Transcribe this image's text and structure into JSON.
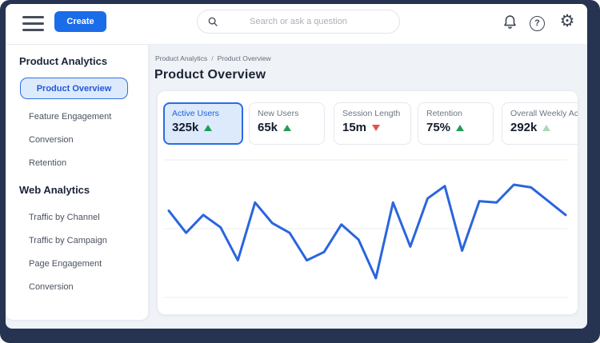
{
  "frame": {
    "bg": "#263451"
  },
  "topbar": {
    "create_label": "Create",
    "search": {
      "placeholder": "Search or ask a question",
      "value": ""
    }
  },
  "icons": {
    "menu": "hamburger-lines",
    "search": "magnifier",
    "notifications": "bell",
    "help": "question-circle",
    "help_glyph": "?",
    "settings": "gear",
    "settings_glyph": "⚙",
    "trend_up": "triangle-up",
    "trend_down": "triangle-down"
  },
  "sidebar": {
    "sections": [
      {
        "heading": "Product Analytics",
        "items": [
          {
            "label": "Product Overview",
            "selected": true
          },
          {
            "label": "Feature Engagement",
            "selected": false
          },
          {
            "label": "Conversion",
            "selected": false
          },
          {
            "label": "Retention",
            "selected": false
          }
        ]
      },
      {
        "heading": "Web Analytics",
        "items": [
          {
            "label": "Traffic by Channel",
            "selected": false
          },
          {
            "label": "Traffic by Campaign",
            "selected": false
          },
          {
            "label": "Page Engagement",
            "selected": false
          },
          {
            "label": "Conversion",
            "selected": false
          }
        ]
      }
    ]
  },
  "main": {
    "breadcrumb": [
      "Product Analytics",
      "Product Overview"
    ],
    "breadcrumb_separator": "/",
    "title": "Product Overview",
    "stat_cards": [
      {
        "label": "Active Users",
        "value": "325k",
        "trend": "up",
        "trend_color": "#1f9d57",
        "selected": true
      },
      {
        "label": "New Users",
        "value": "65k",
        "trend": "up",
        "trend_color": "#1f9d57",
        "selected": false
      },
      {
        "label": "Session Length",
        "value": "15m",
        "trend": "down",
        "trend_color": "#e25252",
        "selected": false
      },
      {
        "label": "Retention",
        "value": "75%",
        "trend": "up",
        "trend_color": "#1f9d57",
        "selected": false
      },
      {
        "label": "Overall Weekly Active",
        "value": "292k",
        "trend": "up",
        "trend_color": "#aed7bd",
        "selected": false
      }
    ]
  },
  "chart_data": {
    "type": "line",
    "title": "",
    "xlabel": "",
    "ylabel": "",
    "x": [
      1,
      2,
      3,
      4,
      5,
      6,
      7,
      8,
      9,
      10,
      11,
      12,
      13,
      14,
      15,
      16,
      17,
      18,
      19,
      20,
      21,
      22,
      23,
      24
    ],
    "values": [
      63,
      47,
      60,
      51,
      27,
      69,
      54,
      47,
      27,
      33,
      53,
      42,
      14,
      69,
      37,
      72,
      81,
      34,
      70,
      69,
      82,
      80,
      70,
      60
    ],
    "ylim": [
      0,
      100
    ],
    "gridlines": [
      0,
      50,
      100
    ],
    "axis_tick_labels_visible": false,
    "legend": "none",
    "line_color": "#2a65de",
    "grid_color": "#e9edf2"
  },
  "colors": {
    "accent_blue": "#1b6ce9",
    "selected_bg": "#ddeafc",
    "selected_border": "#2b6ce2",
    "positive_green": "#1f9d57",
    "negative_red": "#e25252",
    "muted_green": "#aed7bd"
  }
}
